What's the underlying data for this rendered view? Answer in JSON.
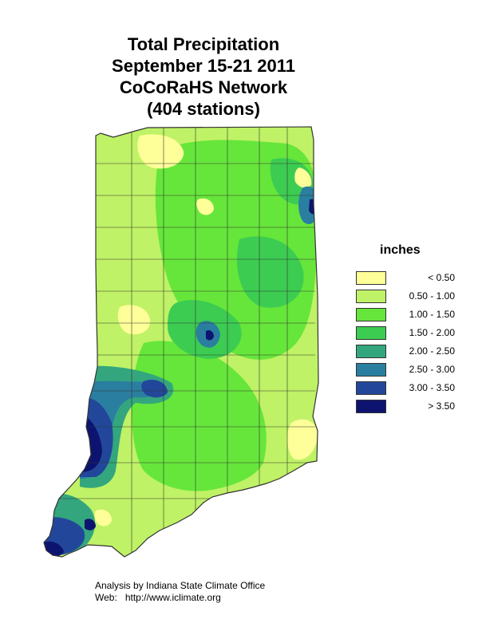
{
  "title": {
    "line1": "Total Precipitation",
    "line2": "September 15-21 2011",
    "line3": "CoCoRaHS Network",
    "line4": "(404 stations)"
  },
  "legend": {
    "title": "inches",
    "items": [
      {
        "label": "< 0.50",
        "color": "#ffff99"
      },
      {
        "label": "0.50 - 1.00",
        "color": "#bff266"
      },
      {
        "label": "1.00 - 1.50",
        "color": "#66e63a"
      },
      {
        "label": "1.50 - 2.00",
        "color": "#3ccc52"
      },
      {
        "label": "2.00 - 2.50",
        "color": "#33a67e"
      },
      {
        "label": "2.50 - 3.00",
        "color": "#2a7fa0"
      },
      {
        "label": "3.00 - 3.50",
        "color": "#22479a"
      },
      {
        "label": "> 3.50",
        "color": "#0d1470"
      }
    ]
  },
  "credit": {
    "analysis": "Analysis by Indiana State Climate Office",
    "web_label": "Web:",
    "web_url": "http://www.iclimate.org"
  }
}
